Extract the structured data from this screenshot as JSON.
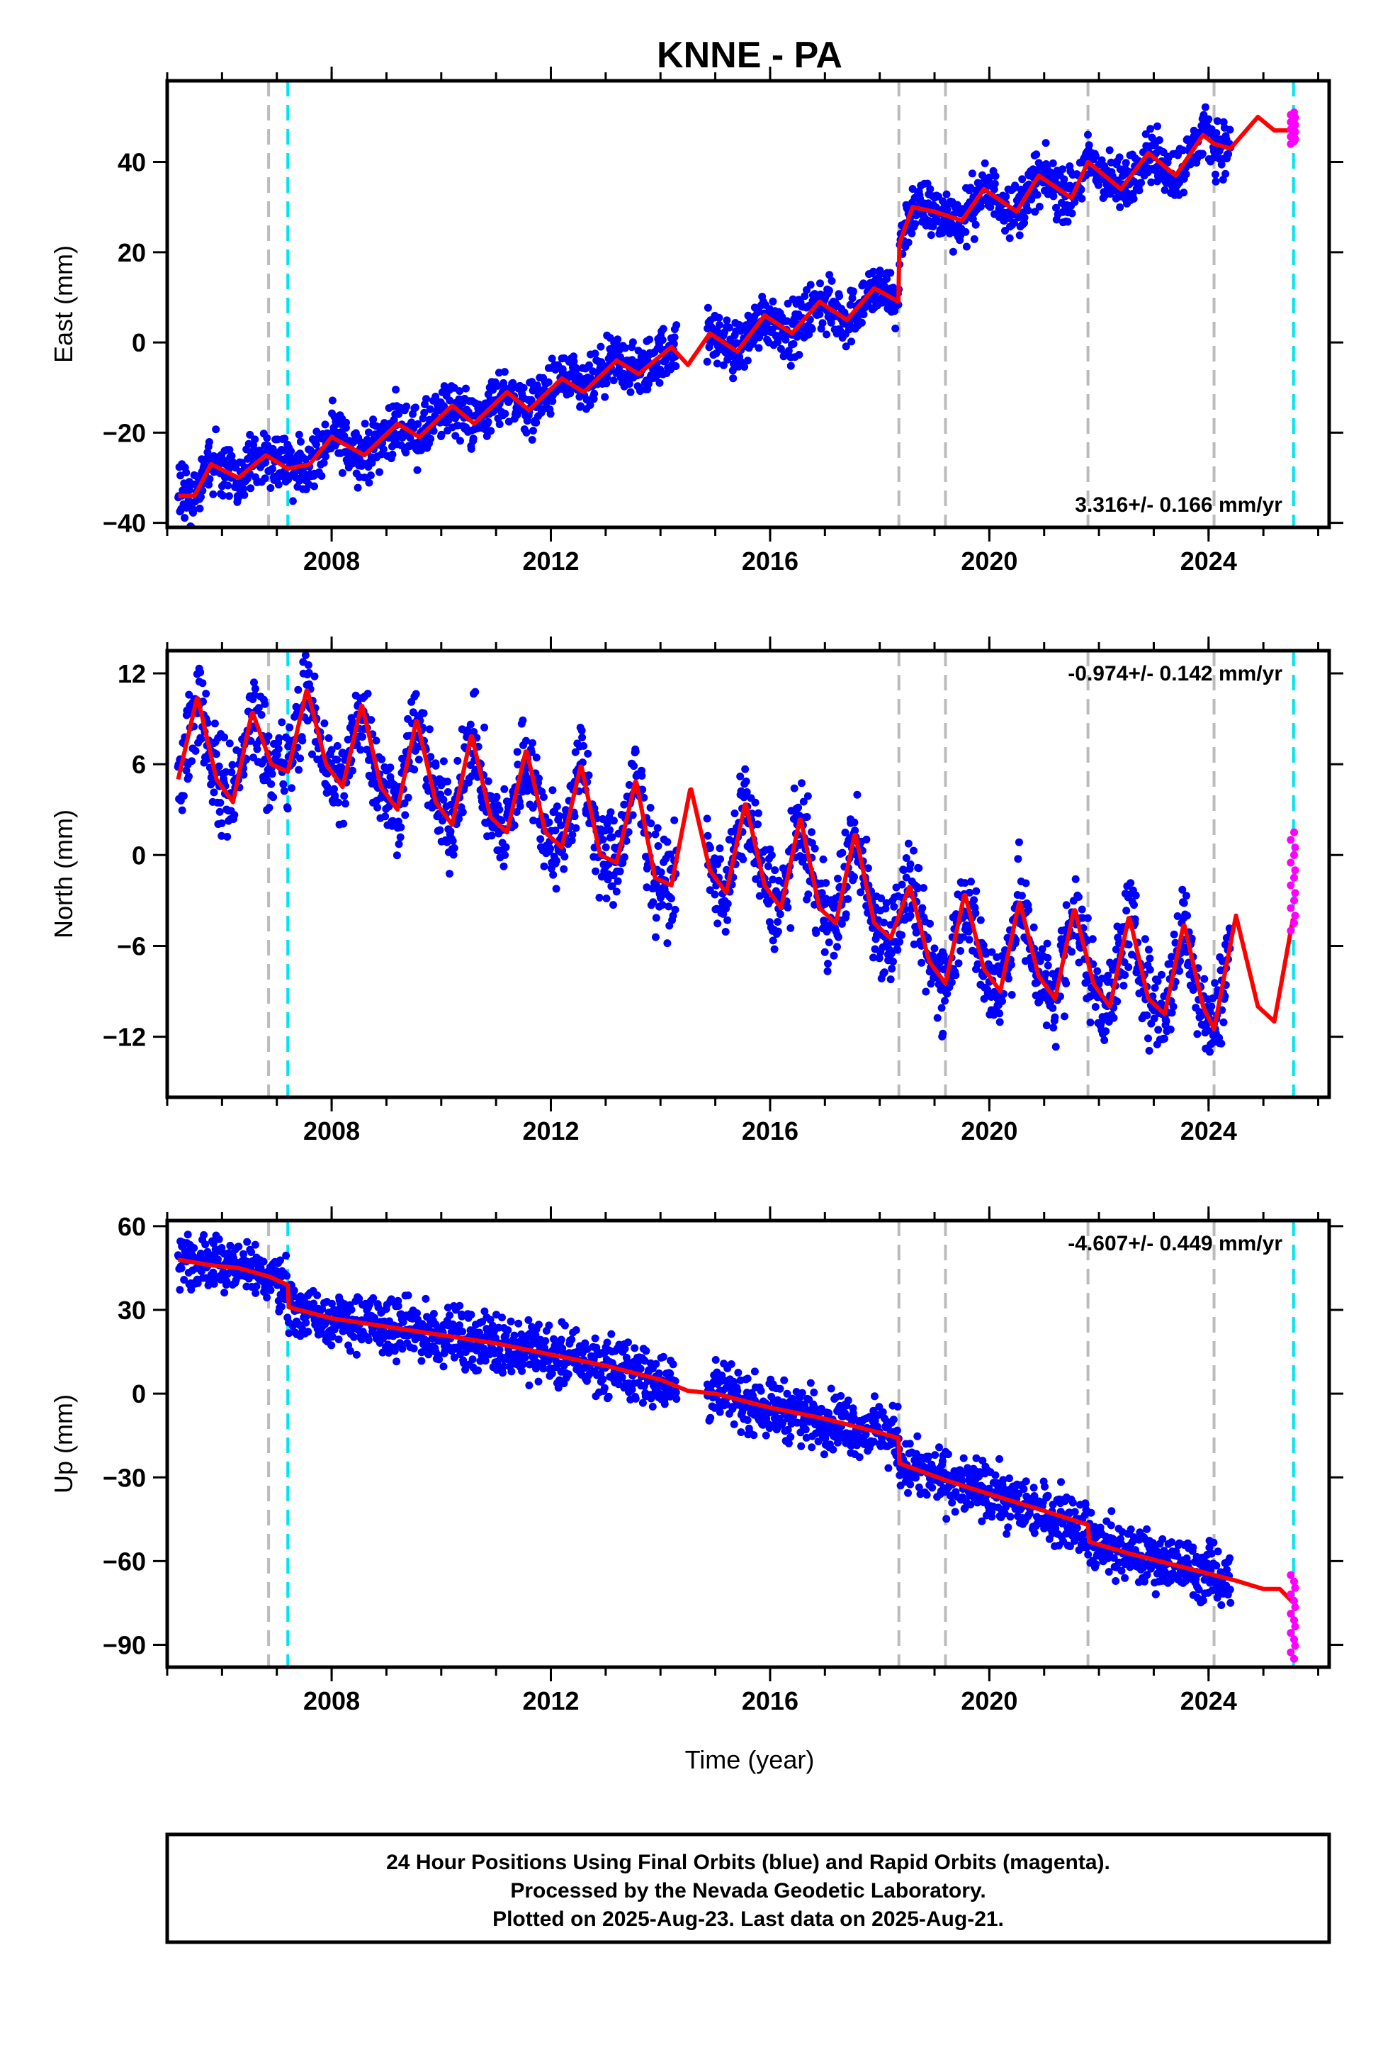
{
  "page_title": "KNNE - PA",
  "footer": {
    "line1": "24 Hour Positions Using Final Orbits (blue) and Rapid Orbits (magenta).",
    "line2": "Processed by the Nevada Geodetic Laboratory.",
    "line3": "Plotted on 2025-Aug-23. Last data on 2025-Aug-21."
  },
  "colors": {
    "final_orbits": "#0000ff",
    "rapid_orbits": "#ff00ff",
    "model": "#ff0000",
    "event_gray": "#bbbbbb",
    "event_cyan": "#00e5ee"
  },
  "chart_data": [
    {
      "type": "scatter",
      "component": "East",
      "ylabel": "East (mm)",
      "xlabel": "",
      "xlim": [
        2005.0,
        2026.2
      ],
      "ylim": [
        -41,
        58
      ],
      "yticks": [
        -40,
        -20,
        0,
        20,
        40
      ],
      "xticks": [
        2008,
        2012,
        2016,
        2020,
        2024
      ],
      "rate_label": "3.316+/- 0.166 mm/yr",
      "rate_position": "bottom-right",
      "events_gray": [
        2006.85,
        2018.35,
        2019.2,
        2021.8,
        2024.1
      ],
      "events_cyan": [
        2007.2,
        2025.55
      ],
      "model": {
        "x": [
          2005.2,
          2005.5,
          2005.8,
          2006.3,
          2006.8,
          2007.2,
          2007.6,
          2008.0,
          2008.6,
          2009.2,
          2009.6,
          2010.2,
          2010.6,
          2011.2,
          2011.6,
          2012.2,
          2012.6,
          2013.2,
          2013.6,
          2014.2,
          2014.5,
          2014.9,
          2015.4,
          2015.9,
          2016.4,
          2016.9,
          2017.4,
          2017.9,
          2018.35,
          2018.36,
          2018.6,
          2019.0,
          2019.5,
          2019.9,
          2020.5,
          2020.9,
          2021.5,
          2021.8,
          2022.4,
          2022.9,
          2023.4,
          2023.9,
          2024.1,
          2024.4,
          2024.9,
          2025.2,
          2025.55
        ],
        "y": [
          -34,
          -34,
          -27,
          -30,
          -25,
          -28,
          -27,
          -21,
          -25,
          -18,
          -21,
          -14,
          -18,
          -11,
          -15,
          -8,
          -11,
          -4,
          -7,
          -1,
          -5,
          2,
          -2,
          6,
          2,
          9,
          5,
          12,
          9,
          22,
          30,
          29,
          27,
          34,
          29,
          37,
          32,
          40,
          34,
          42,
          37,
          46,
          44,
          43,
          50,
          47,
          47
        ]
      },
      "scatter": {
        "amplitude": 3,
        "seed": 1
      },
      "rapid": {
        "x": [
          2025.5,
          2025.56,
          2025.58
        ],
        "y": [
          44,
          47,
          51
        ]
      }
    },
    {
      "type": "scatter",
      "component": "North",
      "ylabel": "North (mm)",
      "xlabel": "",
      "xlim": [
        2005.0,
        2026.2
      ],
      "ylim": [
        -16,
        13.5
      ],
      "yticks": [
        -12,
        -6,
        0,
        6,
        12
      ],
      "xticks": [
        2008,
        2012,
        2016,
        2020,
        2024
      ],
      "rate_label": "-0.974+/- 0.142 mm/yr",
      "rate_position": "top-right",
      "events_gray": [
        2006.85,
        2018.35,
        2019.2,
        2021.8,
        2024.1
      ],
      "events_cyan": [
        2007.2,
        2025.55
      ],
      "model": {
        "x": [
          2005.2,
          2005.55,
          2005.9,
          2006.2,
          2006.55,
          2006.9,
          2007.2,
          2007.55,
          2007.9,
          2008.2,
          2008.55,
          2008.9,
          2009.2,
          2009.55,
          2009.9,
          2010.2,
          2010.55,
          2010.9,
          2011.2,
          2011.55,
          2011.9,
          2012.2,
          2012.55,
          2012.9,
          2013.2,
          2013.55,
          2013.9,
          2014.2,
          2014.55,
          2014.9,
          2015.2,
          2015.55,
          2015.9,
          2016.2,
          2016.55,
          2016.9,
          2017.2,
          2017.55,
          2017.9,
          2018.2,
          2018.55,
          2018.9,
          2019.2,
          2019.55,
          2019.9,
          2020.2,
          2020.55,
          2020.9,
          2021.2,
          2021.55,
          2021.9,
          2022.2,
          2022.55,
          2022.9,
          2023.2,
          2023.55,
          2023.9,
          2024.1,
          2024.5,
          2024.9,
          2025.2,
          2025.55
        ],
        "y": [
          5,
          10.5,
          5,
          3.5,
          9.5,
          6,
          5.5,
          11,
          6,
          4.5,
          10,
          4.5,
          3,
          9,
          3.5,
          2,
          8,
          2.5,
          1.5,
          7,
          1.5,
          0.5,
          6,
          0,
          -0.5,
          5,
          -1.5,
          -2,
          4.5,
          -1,
          -2.5,
          3.5,
          -2,
          -3.5,
          2.5,
          -3.5,
          -4.5,
          1.5,
          -4.5,
          -5.5,
          -2,
          -7,
          -8.5,
          -2.5,
          -7.5,
          -9,
          -3,
          -8,
          -9.5,
          -3.5,
          -8.5,
          -10,
          -4,
          -9.5,
          -10.5,
          -4.5,
          -10,
          -11.5,
          -4,
          -10,
          -11,
          -4
        ]
      },
      "scatter": {
        "amplitude": 1.5,
        "seed": 2
      },
      "rapid": {
        "x": [
          2025.5,
          2025.56,
          2025.58
        ],
        "y": [
          -5,
          -2,
          1.5
        ]
      }
    },
    {
      "type": "scatter",
      "component": "Up",
      "ylabel": "Up (mm)",
      "xlabel": "Time (year)",
      "xlim": [
        2005.0,
        2026.2
      ],
      "ylim": [
        -98,
        62
      ],
      "yticks": [
        -90,
        -60,
        -30,
        0,
        30,
        60
      ],
      "xticks": [
        2008,
        2012,
        2016,
        2020,
        2024
      ],
      "rate_label": "-4.607+/- 0.449 mm/yr",
      "rate_position": "top-right",
      "events_gray": [
        2006.85,
        2018.35,
        2019.2,
        2021.8,
        2024.1
      ],
      "events_cyan": [
        2007.2,
        2025.55
      ],
      "model": {
        "x": [
          2005.2,
          2005.8,
          2006.3,
          2006.85,
          2007.2,
          2007.21,
          2008.0,
          2009.0,
          2010.0,
          2011.0,
          2012.0,
          2013.0,
          2014.0,
          2014.5,
          2015.0,
          2016.0,
          2017.0,
          2018.0,
          2018.35,
          2018.36,
          2019.2,
          2020.0,
          2021.0,
          2021.8,
          2021.81,
          2022.5,
          2023.5,
          2024.1,
          2024.5,
          2025.0,
          2025.3,
          2025.55
        ],
        "y": [
          48,
          46,
          45,
          42,
          39,
          31,
          27,
          24,
          21,
          18,
          14,
          10,
          5,
          1,
          0,
          -5,
          -9,
          -14,
          -16,
          -25,
          -31,
          -36,
          -42,
          -47,
          -53,
          -57,
          -62,
          -65,
          -67,
          -70,
          -70,
          -75
        ]
      },
      "scatter": {
        "amplitude": 5,
        "seed": 3
      },
      "rapid": {
        "x": [
          2025.5,
          2025.56,
          2025.58
        ],
        "y": [
          -65,
          -80,
          -95
        ]
      }
    }
  ]
}
